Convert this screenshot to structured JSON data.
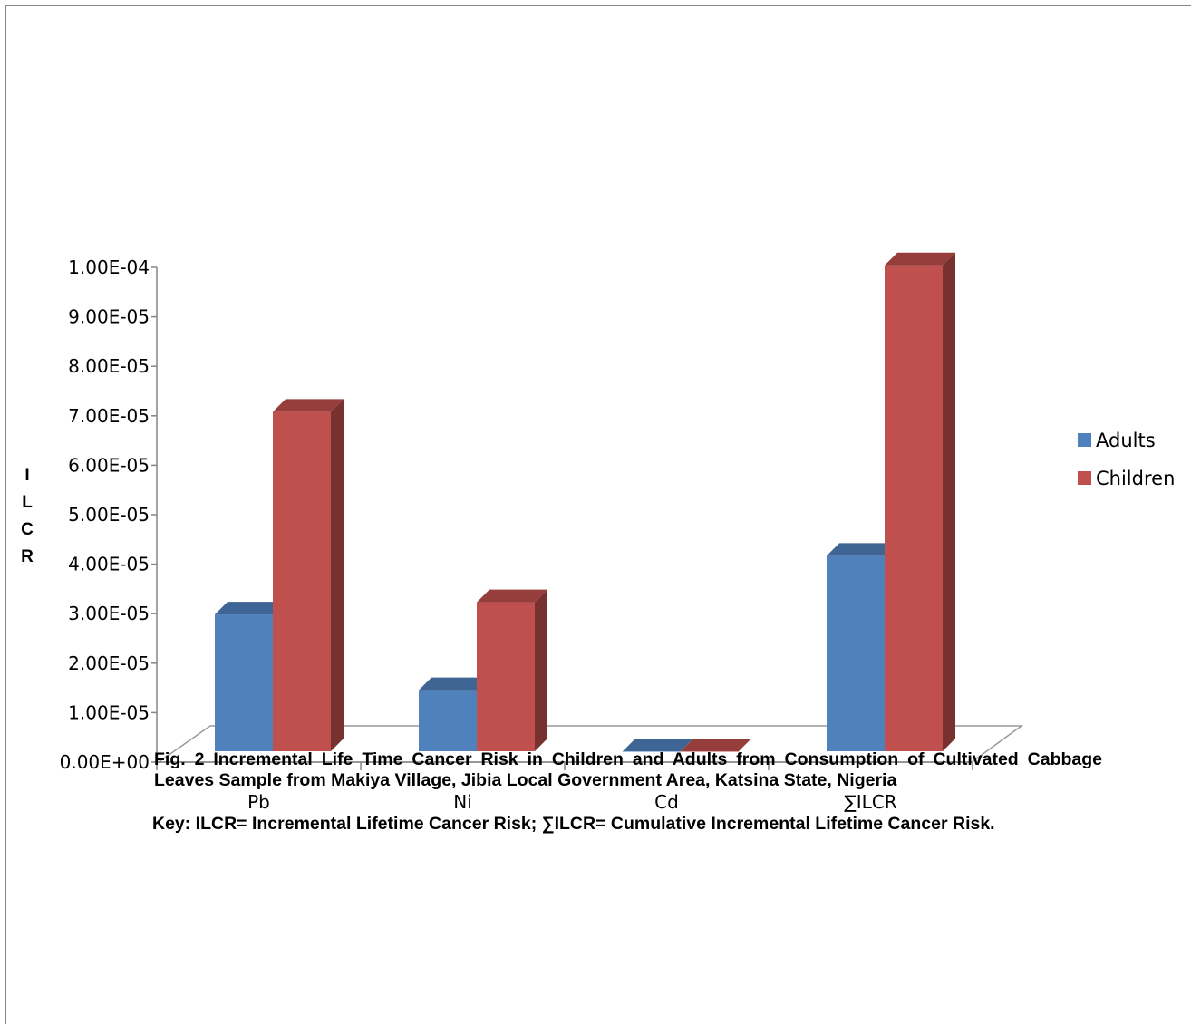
{
  "chart_data": {
    "type": "bar",
    "style": "3d-clustered-column",
    "categories": [
      "Pb",
      "Ni",
      "Cd",
      "∑ILCR"
    ],
    "series": [
      {
        "name": "Adults",
        "color": "#4f81bd",
        "values": [
          2.8e-05,
          1.25e-05,
          0.0,
          4e-05
        ]
      },
      {
        "name": "Children",
        "color": "#c0504d",
        "values": [
          6.95e-05,
          3.05e-05,
          0.0,
          9.95e-05
        ]
      }
    ],
    "ylabel_letters": [
      "I",
      "L",
      "C",
      "R"
    ],
    "ylim": [
      0,
      0.0001
    ],
    "y_ticks": [
      "0.00E+00",
      "1.00E-05",
      "2.00E-05",
      "3.00E-05",
      "4.00E-05",
      "5.00E-05",
      "6.00E-05",
      "7.00E-05",
      "8.00E-05",
      "9.00E-05",
      "1.00E-04"
    ],
    "legend_position": "right",
    "grid": false
  },
  "caption": {
    "figure_text": "Fig. 2 Incremental Life Time Cancer Risk in Children and Adults from Consumption of Cultivated Cabbage Leaves Sample from Makiya Village, Jibia Local Government Area, Katsina State, Nigeria",
    "key_text": "Key: ILCR= Incremental Lifetime Cancer Risk; ∑ILCR= Cumulative Incremental Lifetime Cancer Risk."
  }
}
